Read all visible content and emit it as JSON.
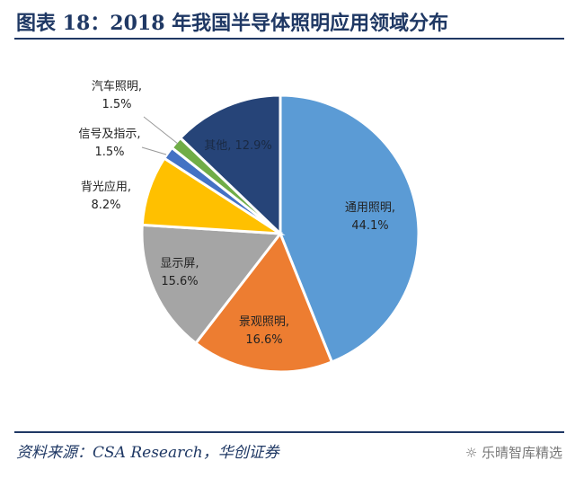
{
  "title": "图表 18：2018 年我国半导体照明应用领域分布",
  "source": "资料来源：CSA Research，华创证券",
  "watermark": "乐晴智库精选",
  "watermark_icon": "wechat-icon",
  "chart_data": {
    "type": "pie",
    "start": "12 o'clock, clockwise",
    "categories": [
      "通用照明",
      "景观照明",
      "显示屏",
      "背光应用",
      "信号及指示",
      "汽车照明",
      "其他"
    ],
    "values": [
      44.1,
      16.6,
      15.6,
      8.2,
      1.5,
      1.5,
      12.9
    ],
    "labels": [
      "44.1%",
      "16.6%",
      "15.6%",
      "8.2%",
      "1.5%",
      "1.5%",
      "12.9%"
    ],
    "colors": [
      "#5b9bd5",
      "#ed7d31",
      "#a5a5a5",
      "#ffc000",
      "#4472c4",
      "#70ad47",
      "#264478"
    ]
  }
}
